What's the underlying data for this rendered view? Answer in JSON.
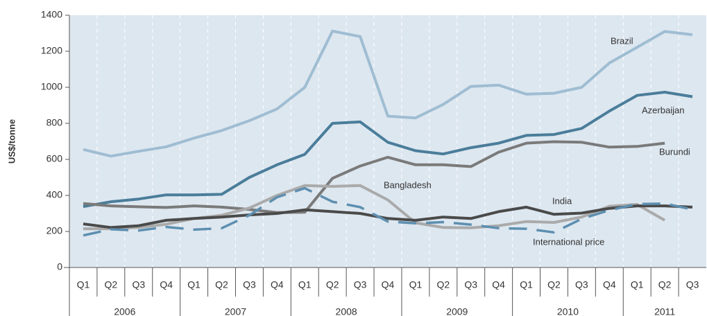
{
  "chart_data": {
    "type": "line",
    "ylabel": "US$/tonne",
    "categories": [
      "Q1",
      "Q2",
      "Q3",
      "Q4",
      "Q1",
      "Q2",
      "Q3",
      "Q4",
      "Q1",
      "Q2",
      "Q3",
      "Q4",
      "Q1",
      "Q2",
      "Q3",
      "Q4",
      "Q1",
      "Q2",
      "Q3",
      "Q4",
      "Q1",
      "Q2",
      "Q3"
    ],
    "year_groups": [
      {
        "label": "2006",
        "span": 4
      },
      {
        "label": "2007",
        "span": 4
      },
      {
        "label": "2008",
        "span": 4
      },
      {
        "label": "2009",
        "span": 4
      },
      {
        "label": "2010",
        "span": 4
      },
      {
        "label": "2011",
        "span": 3
      }
    ],
    "ylim": [
      0,
      1400
    ],
    "yticks": [
      0,
      200,
      400,
      600,
      800,
      1000,
      1200,
      1400
    ],
    "grid": true,
    "series": [
      {
        "name": "Brazil",
        "color": "#9fbdd2",
        "values": [
          655,
          618,
          645,
          670,
          718,
          760,
          815,
          880,
          1000,
          1312,
          1282,
          840,
          830,
          905,
          1005,
          1012,
          962,
          967,
          1000,
          1135,
          1222,
          1310,
          1292
        ]
      },
      {
        "name": "Azerbaijan",
        "color": "#4a7d9a",
        "values": [
          338,
          365,
          380,
          403,
          403,
          406,
          500,
          570,
          628,
          800,
          808,
          695,
          648,
          630,
          665,
          690,
          733,
          738,
          772,
          868,
          955,
          973,
          948
        ]
      },
      {
        "name": "Burundi",
        "color": "#7a7a7a",
        "values": [
          355,
          342,
          337,
          333,
          342,
          335,
          322,
          305,
          307,
          495,
          563,
          612,
          570,
          570,
          560,
          640,
          690,
          698,
          695,
          668,
          672,
          690,
          null
        ]
      },
      {
        "name": "Bangladesh",
        "color": "#aaaaaa",
        "values": [
          215,
          215,
          222,
          240,
          272,
          290,
          330,
          400,
          455,
          450,
          455,
          375,
          248,
          222,
          220,
          232,
          255,
          250,
          280,
          340,
          350,
          262,
          null
        ]
      },
      {
        "name": "India",
        "color": "#4a4a4a",
        "values": [
          242,
          222,
          232,
          262,
          272,
          280,
          292,
          300,
          320,
          310,
          300,
          272,
          262,
          280,
          272,
          310,
          335,
          295,
          302,
          328,
          342,
          342,
          335
        ]
      },
      {
        "name": "International price",
        "color": "#5d8fb0",
        "dashed": true,
        "values": [
          178,
          212,
          205,
          225,
          210,
          218,
          290,
          390,
          440,
          365,
          335,
          255,
          245,
          252,
          238,
          218,
          215,
          195,
          270,
          318,
          352,
          355,
          322
        ]
      }
    ]
  }
}
